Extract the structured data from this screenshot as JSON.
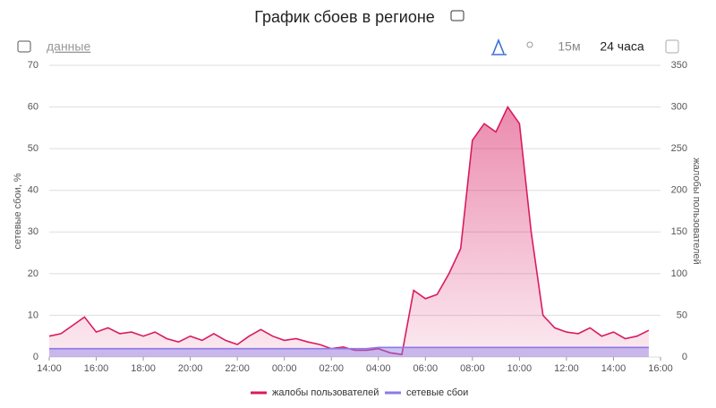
{
  "ui": {
    "data_link": "данные",
    "interval": "15м",
    "range": "24 часа"
  },
  "chart_data": {
    "type": "line",
    "title": "График сбоев в регионе",
    "ylabel": "сетевые сбои, %",
    "y2label": "жалобы пользователей",
    "x": [
      0,
      0.5,
      1,
      1.5,
      2,
      2.5,
      3,
      3.5,
      4,
      4.5,
      5,
      5.5,
      6,
      6.5,
      7,
      7.5,
      8,
      8.5,
      9,
      9.5,
      10,
      10.5,
      11,
      11.5,
      12,
      12.5,
      13,
      13.5,
      14,
      14.5,
      15,
      15.5,
      16,
      16.5,
      17,
      17.5,
      18,
      18.5,
      19,
      19.5,
      20,
      20.5,
      21,
      21.5,
      22,
      22.5,
      23,
      23.5,
      24,
      24.5,
      25,
      25.5
    ],
    "xlim": [
      0,
      26
    ],
    "xticks": [
      {
        "value": 0,
        "label": "14:00"
      },
      {
        "value": 2,
        "label": "16:00"
      },
      {
        "value": 4,
        "label": "18:00"
      },
      {
        "value": 6,
        "label": "20:00"
      },
      {
        "value": 8,
        "label": "22:00"
      },
      {
        "value": 10,
        "label": "00:00"
      },
      {
        "value": 12,
        "label": "02:00"
      },
      {
        "value": 14,
        "label": "04:00"
      },
      {
        "value": 16,
        "label": "06:00"
      },
      {
        "value": 18,
        "label": "08:00"
      },
      {
        "value": 20,
        "label": "10:00"
      },
      {
        "value": 22,
        "label": "12:00"
      },
      {
        "value": 24,
        "label": "14:00"
      },
      {
        "value": 26,
        "label": "16:00"
      }
    ],
    "ylim": [
      0,
      70
    ],
    "yticks": [
      0,
      10,
      20,
      30,
      40,
      50,
      60,
      70
    ],
    "y2lim": [
      0,
      350
    ],
    "y2ticks": [
      0,
      50,
      100,
      150,
      200,
      250,
      300,
      350
    ],
    "grid": true,
    "legend": "bottom",
    "series": [
      {
        "name": "жалобы пользователей",
        "color": "#d81b60",
        "axis": "y2",
        "values": [
          25,
          28,
          38,
          48,
          30,
          35,
          28,
          30,
          25,
          30,
          22,
          18,
          25,
          20,
          28,
          20,
          15,
          25,
          33,
          25,
          20,
          22,
          18,
          15,
          10,
          12,
          8,
          8,
          10,
          5,
          3,
          80,
          70,
          75,
          100,
          130,
          260,
          280,
          270,
          300,
          280,
          150,
          50,
          35,
          30,
          28,
          35,
          25,
          30,
          22,
          25,
          32
        ]
      },
      {
        "name": "сетевые сбои",
        "color": "#8c7ae6",
        "values": [
          2,
          2,
          2,
          2,
          2,
          2,
          2,
          2,
          2,
          2,
          2,
          2,
          2,
          2,
          2,
          2,
          2,
          2,
          2,
          2,
          2,
          2,
          2,
          2,
          2,
          2,
          2,
          2,
          2.3,
          2.3,
          2.3,
          2.3,
          2.3,
          2.3,
          2.3,
          2.3,
          2.3,
          2.3,
          2.3,
          2.3,
          2.3,
          2.3,
          2.3,
          2.3,
          2.3,
          2.3,
          2.3,
          2.3,
          2.3,
          2.3,
          2.3,
          2.3
        ]
      }
    ]
  }
}
